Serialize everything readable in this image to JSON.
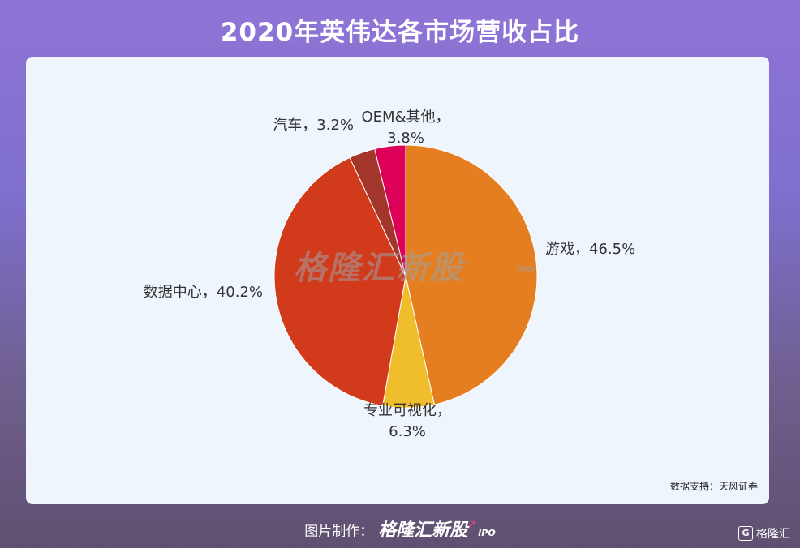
{
  "title": "2020年英伟达各市场营收占比",
  "source": "数据支持：天风证券",
  "watermark": "格隆汇新股",
  "watermark_sub": "IPO",
  "footer": {
    "label": "图片制作：",
    "brand": "格隆汇新股",
    "brand_sub": "IPO"
  },
  "corner_logo": {
    "icon": "G",
    "text": "格隆汇"
  },
  "chart_data": {
    "type": "pie",
    "start_angle": "top, clockwise",
    "categories": [
      "游戏",
      "专业可视化",
      "数据中心",
      "汽车",
      "OEM&其他"
    ],
    "values": [
      46.5,
      6.3,
      40.2,
      3.2,
      3.8
    ],
    "colors": [
      "#e57e20",
      "#f0be2c",
      "#d13a1b",
      "#a3352a",
      "#dc0058"
    ],
    "labels": [
      [
        "游戏，46.5%"
      ],
      [
        "专业可视化，",
        "6.3%"
      ],
      [
        "数据中心，40.2%"
      ],
      [
        "汽车，3.2%"
      ],
      [
        "OEM&其他，",
        "3.8%"
      ]
    ]
  }
}
